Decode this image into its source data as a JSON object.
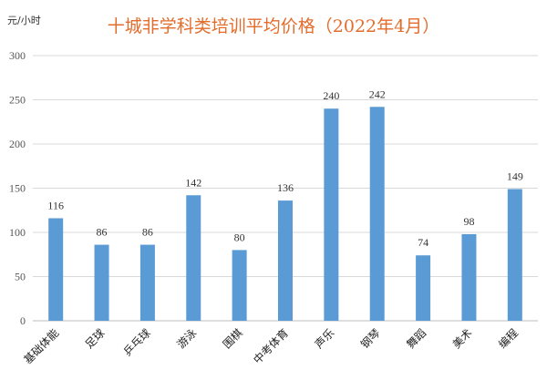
{
  "chart_data": {
    "type": "bar",
    "title": "十城非学科类培训平均价格（2022年4月）",
    "unit_label": "元/小时",
    "categories": [
      "基础体能",
      "足球",
      "乒乓球",
      "游泳",
      "围棋",
      "中考体育",
      "声乐",
      "钢琴",
      "舞蹈",
      "美术",
      "编程"
    ],
    "values": [
      116,
      86,
      86,
      142,
      80,
      136,
      240,
      242,
      74,
      98,
      149
    ],
    "ylim": [
      0,
      300
    ],
    "yticks": [
      0,
      50,
      100,
      150,
      200,
      250,
      300
    ],
    "grid": true,
    "legend": "none"
  },
  "colors": {
    "bar": "#5b9bd5",
    "title": "#e36c2b"
  }
}
